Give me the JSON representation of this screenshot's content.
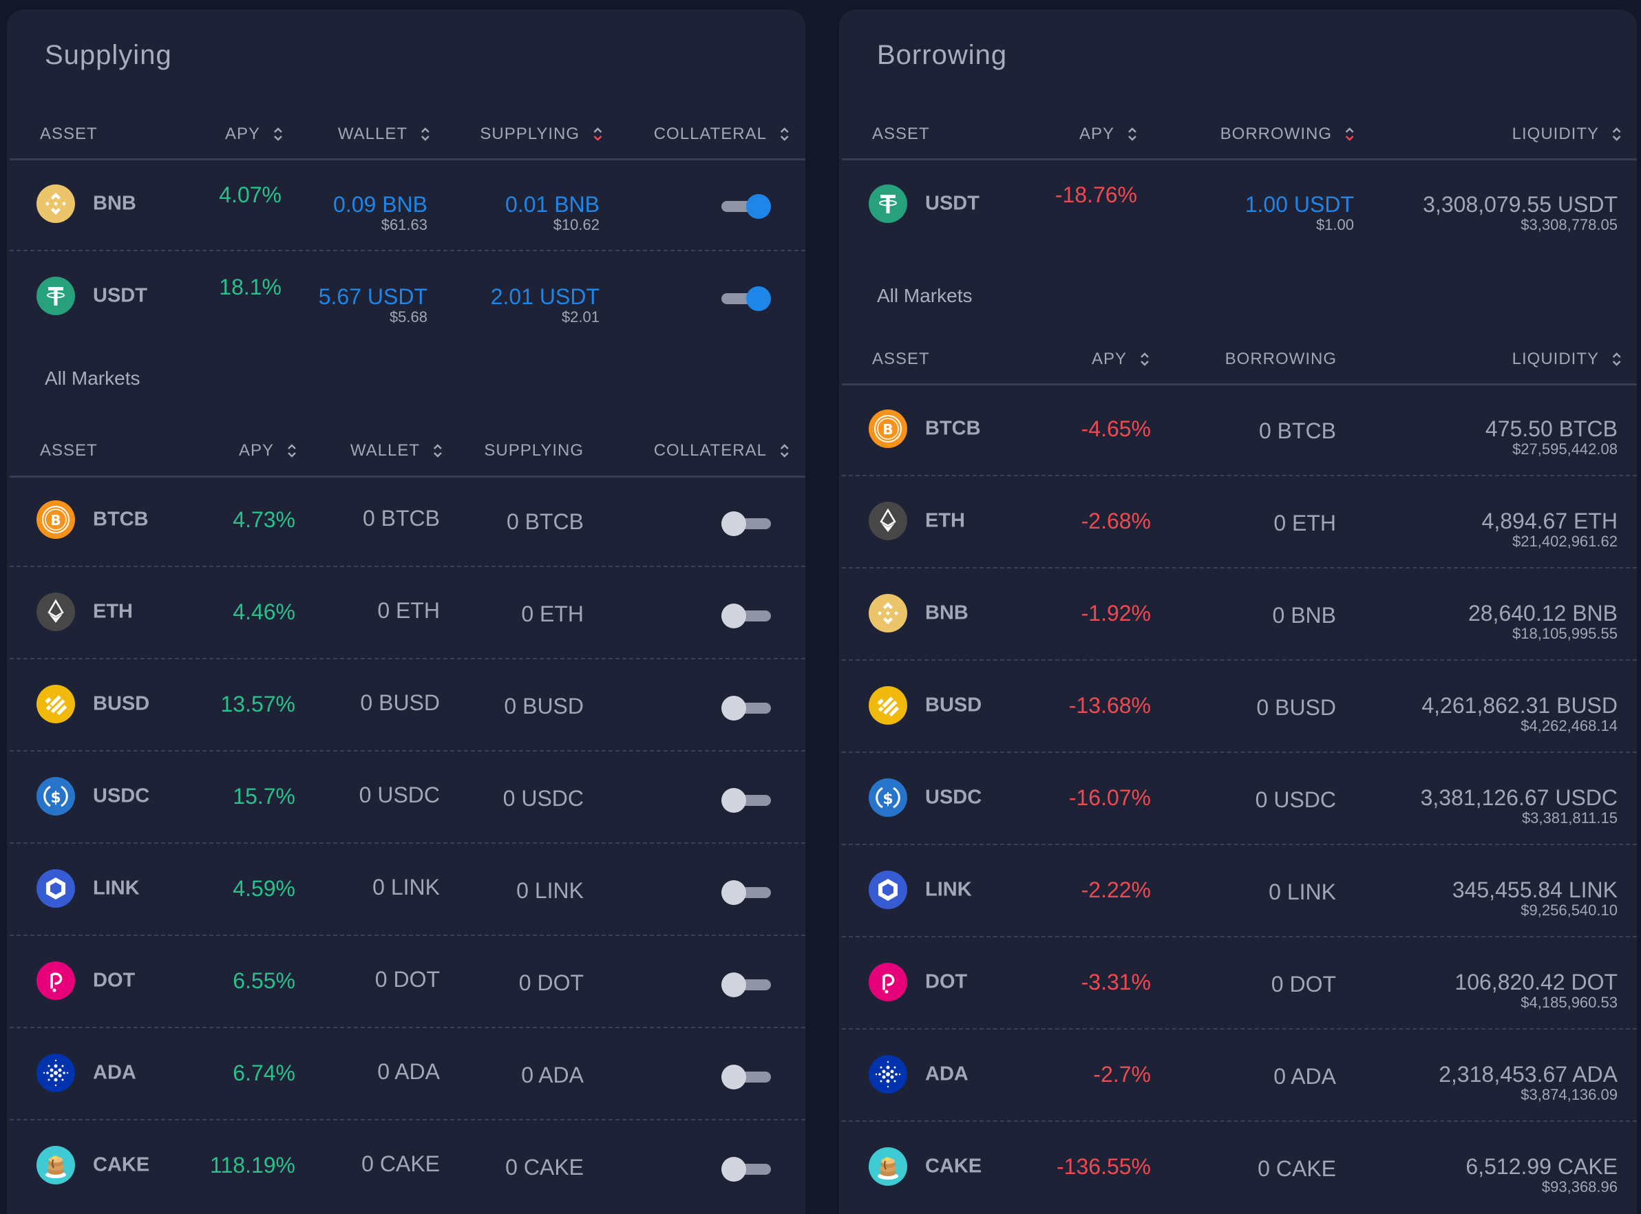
{
  "colors": {
    "background": "#131829",
    "panel": "#1e2237",
    "positive_apy": "#27c28a",
    "negative_apy": "#f0494f",
    "user_balance": "#1e86e9",
    "text": "#a1a7b7",
    "active_sort": "#f0494f"
  },
  "supplying": {
    "title": "Supplying",
    "headers": {
      "asset": "ASSET",
      "apy": "APY",
      "wallet": "WALLET",
      "supplying": "SUPPLYING",
      "collateral": "COLLATERAL"
    },
    "rows": [
      {
        "icon": "bnb-icon",
        "symbol": "BNB",
        "apy": "4.07%",
        "wallet": "0.09 BNB",
        "wallet_usd": "$61.63",
        "supplying": "0.01 BNB",
        "supplying_usd": "$10.62",
        "collateral": true
      },
      {
        "icon": "usdt-icon",
        "symbol": "USDT",
        "apy": "18.1%",
        "wallet": "5.67 USDT",
        "wallet_usd": "$5.68",
        "supplying": "2.01 USDT",
        "supplying_usd": "$2.01",
        "collateral": true
      }
    ],
    "all_markets": {
      "title": "All Markets",
      "headers": {
        "asset": "ASSET",
        "apy": "APY",
        "wallet": "WALLET",
        "supplying": "SUPPLYING",
        "collateral": "COLLATERAL"
      },
      "rows": [
        {
          "icon": "btcb-icon",
          "symbol": "BTCB",
          "apy": "4.73%",
          "wallet": "0 BTCB",
          "supplying": "0 BTCB",
          "collateral": false
        },
        {
          "icon": "eth-icon",
          "symbol": "ETH",
          "apy": "4.46%",
          "wallet": "0 ETH",
          "supplying": "0 ETH",
          "collateral": false
        },
        {
          "icon": "busd-icon",
          "symbol": "BUSD",
          "apy": "13.57%",
          "wallet": "0 BUSD",
          "supplying": "0 BUSD",
          "collateral": false
        },
        {
          "icon": "usdc-icon",
          "symbol": "USDC",
          "apy": "15.7%",
          "wallet": "0 USDC",
          "supplying": "0 USDC",
          "collateral": false
        },
        {
          "icon": "link-icon",
          "symbol": "LINK",
          "apy": "4.59%",
          "wallet": "0 LINK",
          "supplying": "0 LINK",
          "collateral": false
        },
        {
          "icon": "dot-icon",
          "symbol": "DOT",
          "apy": "6.55%",
          "wallet": "0 DOT",
          "supplying": "0 DOT",
          "collateral": false
        },
        {
          "icon": "ada-icon",
          "symbol": "ADA",
          "apy": "6.74%",
          "wallet": "0 ADA",
          "supplying": "0 ADA",
          "collateral": false
        },
        {
          "icon": "cake-icon",
          "symbol": "CAKE",
          "apy": "118.19%",
          "wallet": "0 CAKE",
          "supplying": "0 CAKE",
          "collateral": false
        }
      ]
    }
  },
  "borrowing": {
    "title": "Borrowing",
    "headers": {
      "asset": "ASSET",
      "apy": "APY",
      "borrowing": "BORROWING",
      "liquidity": "LIQUIDITY"
    },
    "rows": [
      {
        "icon": "usdt-icon",
        "symbol": "USDT",
        "apy": "-18.76%",
        "borrowing": "1.00 USDT",
        "borrowing_usd": "$1.00",
        "liquidity": "3,308,079.55 USDT",
        "liquidity_usd": "$3,308,778.05"
      }
    ],
    "all_markets": {
      "title": "All Markets",
      "headers": {
        "asset": "ASSET",
        "apy": "APY",
        "borrowing": "BORROWING",
        "liquidity": "LIQUIDITY"
      },
      "rows": [
        {
          "icon": "btcb-icon",
          "symbol": "BTCB",
          "apy": "-4.65%",
          "borrowing": "0 BTCB",
          "liquidity": "475.50 BTCB",
          "liquidity_usd": "$27,595,442.08"
        },
        {
          "icon": "eth-icon",
          "symbol": "ETH",
          "apy": "-2.68%",
          "borrowing": "0 ETH",
          "liquidity": "4,894.67 ETH",
          "liquidity_usd": "$21,402,961.62"
        },
        {
          "icon": "bnb-icon",
          "symbol": "BNB",
          "apy": "-1.92%",
          "borrowing": "0 BNB",
          "liquidity": "28,640.12 BNB",
          "liquidity_usd": "$18,105,995.55"
        },
        {
          "icon": "busd-icon",
          "symbol": "BUSD",
          "apy": "-13.68%",
          "borrowing": "0 BUSD",
          "liquidity": "4,261,862.31 BUSD",
          "liquidity_usd": "$4,262,468.14"
        },
        {
          "icon": "usdc-icon",
          "symbol": "USDC",
          "apy": "-16.07%",
          "borrowing": "0 USDC",
          "liquidity": "3,381,126.67 USDC",
          "liquidity_usd": "$3,381,811.15"
        },
        {
          "icon": "link-icon",
          "symbol": "LINK",
          "apy": "-2.22%",
          "borrowing": "0 LINK",
          "liquidity": "345,455.84 LINK",
          "liquidity_usd": "$9,256,540.10"
        },
        {
          "icon": "dot-icon",
          "symbol": "DOT",
          "apy": "-3.31%",
          "borrowing": "0 DOT",
          "liquidity": "106,820.42 DOT",
          "liquidity_usd": "$4,185,960.53"
        },
        {
          "icon": "ada-icon",
          "symbol": "ADA",
          "apy": "-2.7%",
          "borrowing": "0 ADA",
          "liquidity": "2,318,453.67 ADA",
          "liquidity_usd": "$3,874,136.09"
        },
        {
          "icon": "cake-icon",
          "symbol": "CAKE",
          "apy": "-136.55%",
          "borrowing": "0 CAKE",
          "liquidity": "6,512.99 CAKE",
          "liquidity_usd": "$93,368.96"
        }
      ]
    }
  }
}
